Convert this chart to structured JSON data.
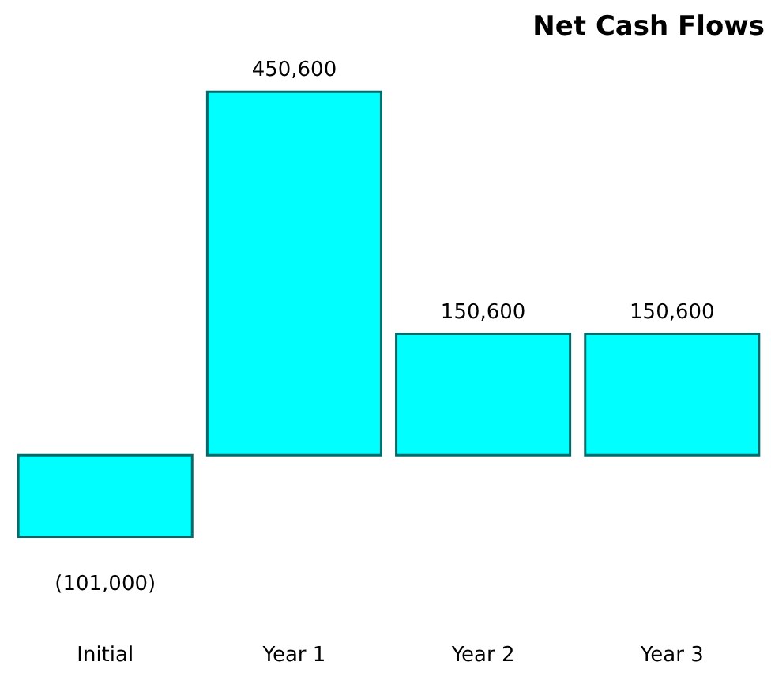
{
  "chart_data": {
    "type": "bar",
    "title": "Net Cash Flows",
    "categories": [
      "Initial",
      "Year 1",
      "Year 2",
      "Year 3"
    ],
    "values": [
      -101000,
      450600,
      150600,
      150600
    ],
    "value_labels": [
      "(101,000)",
      "450,600",
      "150,600",
      "150,600"
    ],
    "color": "#00ffff",
    "grid": false
  }
}
